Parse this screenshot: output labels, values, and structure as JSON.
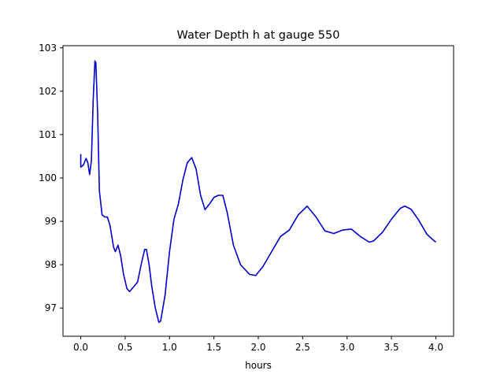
{
  "chart_data": {
    "type": "line",
    "title": "Water Depth h at gauge 550",
    "xlabel": "hours",
    "ylabel": "",
    "xlim": [
      -0.2,
      4.2
    ],
    "ylim": [
      96.35,
      103.05
    ],
    "xticks": [
      0.0,
      0.5,
      1.0,
      1.5,
      2.0,
      2.5,
      3.0,
      3.5,
      4.0
    ],
    "xtick_labels": [
      "0.0",
      "0.5",
      "1.0",
      "1.5",
      "2.0",
      "2.5",
      "3.0",
      "3.5",
      "4.0"
    ],
    "yticks": [
      97,
      98,
      99,
      100,
      101,
      102,
      103
    ],
    "ytick_labels": [
      "97",
      "98",
      "99",
      "100",
      "101",
      "102",
      "103"
    ],
    "grid": false,
    "series": [
      {
        "color": "#0000cc",
        "points": [
          [
            0.0,
            100.55
          ],
          [
            0.0,
            100.25
          ],
          [
            0.03,
            100.3
          ],
          [
            0.06,
            100.45
          ],
          [
            0.08,
            100.35
          ],
          [
            0.1,
            100.08
          ],
          [
            0.12,
            100.4
          ],
          [
            0.14,
            101.8
          ],
          [
            0.16,
            102.7
          ],
          [
            0.17,
            102.65
          ],
          [
            0.19,
            101.5
          ],
          [
            0.21,
            99.7
          ],
          [
            0.24,
            99.15
          ],
          [
            0.27,
            99.1
          ],
          [
            0.3,
            99.1
          ],
          [
            0.33,
            98.9
          ],
          [
            0.37,
            98.4
          ],
          [
            0.39,
            98.3
          ],
          [
            0.42,
            98.45
          ],
          [
            0.45,
            98.2
          ],
          [
            0.48,
            97.8
          ],
          [
            0.52,
            97.45
          ],
          [
            0.55,
            97.38
          ],
          [
            0.6,
            97.5
          ],
          [
            0.64,
            97.6
          ],
          [
            0.68,
            98.0
          ],
          [
            0.72,
            98.35
          ],
          [
            0.74,
            98.35
          ],
          [
            0.77,
            98.0
          ],
          [
            0.8,
            97.5
          ],
          [
            0.84,
            97.0
          ],
          [
            0.88,
            96.67
          ],
          [
            0.9,
            96.7
          ],
          [
            0.95,
            97.3
          ],
          [
            1.0,
            98.3
          ],
          [
            1.05,
            99.05
          ],
          [
            1.1,
            99.4
          ],
          [
            1.15,
            99.95
          ],
          [
            1.2,
            100.35
          ],
          [
            1.25,
            100.47
          ],
          [
            1.3,
            100.2
          ],
          [
            1.35,
            99.6
          ],
          [
            1.4,
            99.27
          ],
          [
            1.45,
            99.4
          ],
          [
            1.5,
            99.55
          ],
          [
            1.55,
            99.6
          ],
          [
            1.6,
            99.6
          ],
          [
            1.65,
            99.2
          ],
          [
            1.72,
            98.45
          ],
          [
            1.8,
            98.0
          ],
          [
            1.9,
            97.78
          ],
          [
            1.97,
            97.75
          ],
          [
            2.05,
            97.95
          ],
          [
            2.15,
            98.3
          ],
          [
            2.25,
            98.65
          ],
          [
            2.35,
            98.8
          ],
          [
            2.45,
            99.15
          ],
          [
            2.55,
            99.35
          ],
          [
            2.65,
            99.1
          ],
          [
            2.75,
            98.78
          ],
          [
            2.85,
            98.72
          ],
          [
            2.95,
            98.8
          ],
          [
            3.05,
            98.82
          ],
          [
            3.15,
            98.65
          ],
          [
            3.25,
            98.52
          ],
          [
            3.3,
            98.55
          ],
          [
            3.4,
            98.75
          ],
          [
            3.5,
            99.05
          ],
          [
            3.6,
            99.3
          ],
          [
            3.65,
            99.35
          ],
          [
            3.72,
            99.28
          ],
          [
            3.8,
            99.05
          ],
          [
            3.9,
            98.7
          ],
          [
            3.97,
            98.57
          ],
          [
            4.0,
            98.52
          ]
        ]
      }
    ]
  }
}
